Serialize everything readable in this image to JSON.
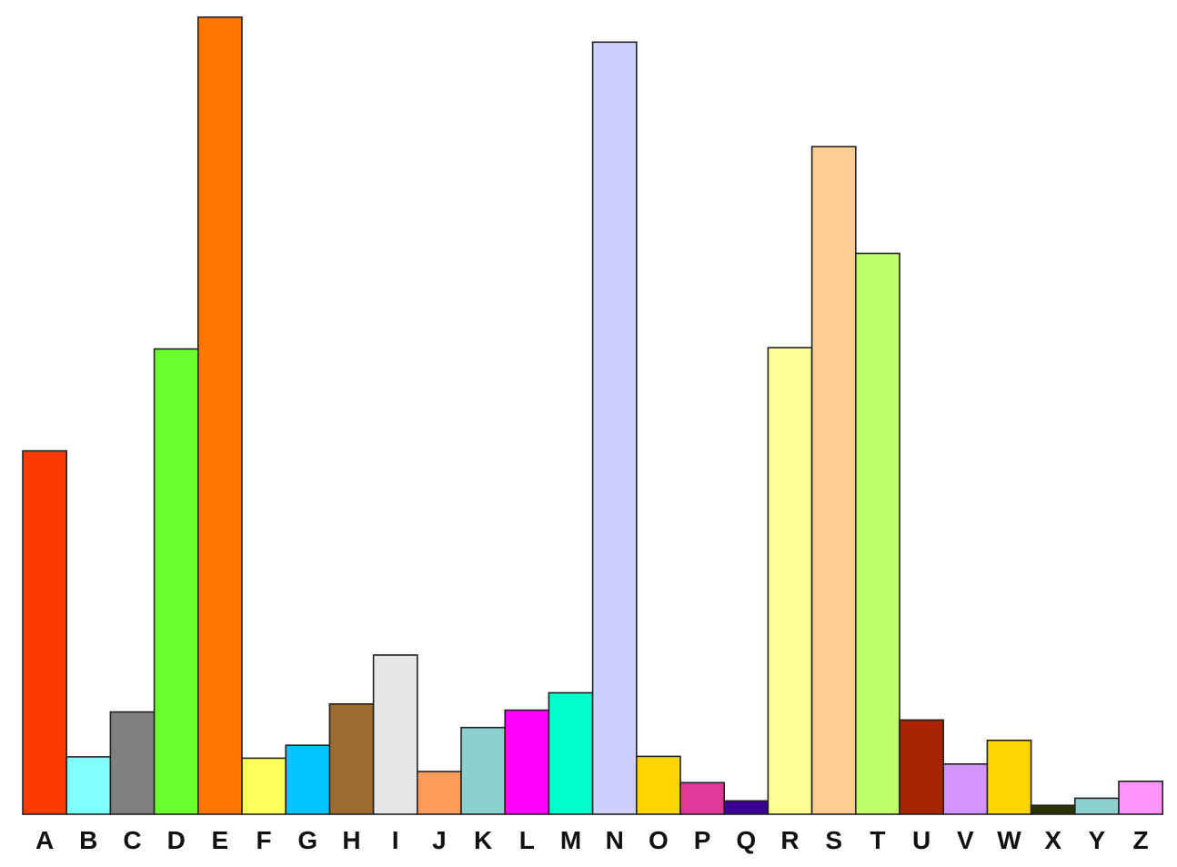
{
  "chart_data": {
    "type": "bar",
    "categories": [
      "A",
      "B",
      "C",
      "D",
      "E",
      "F",
      "G",
      "H",
      "I",
      "J",
      "K",
      "L",
      "M",
      "N",
      "O",
      "P",
      "Q",
      "R",
      "S",
      "T",
      "U",
      "V",
      "W",
      "X",
      "Y",
      "Z"
    ],
    "values": [
      8.17,
      1.29,
      2.3,
      10.46,
      17.92,
      1.26,
      1.55,
      2.48,
      3.58,
      0.96,
      1.95,
      2.34,
      2.73,
      17.36,
      1.3,
      0.71,
      0.3,
      10.49,
      15.01,
      12.61,
      2.12,
      1.13,
      1.66,
      0.2,
      0.36,
      0.74
    ],
    "colors": [
      "#FF3A00",
      "#7FFFFF",
      "#808080",
      "#6BFF2E",
      "#FF7600",
      "#FFFF5C",
      "#00C4FF",
      "#9C6B30",
      "#E6E6E6",
      "#FF9C5C",
      "#8ECFCF",
      "#FF00FF",
      "#00FFCC",
      "#CFCFFF",
      "#FFD400",
      "#E0399B",
      "#3A0094",
      "#FFFF96",
      "#FFCC94",
      "#BFFF6B",
      "#A82400",
      "#D494FF",
      "#FFD500",
      "#2A3300",
      "#8ECFCF",
      "#FF94FF"
    ],
    "ylim": [
      0,
      18
    ],
    "title": "",
    "xlabel": "",
    "ylabel": "",
    "grid": false,
    "legend": "none"
  }
}
